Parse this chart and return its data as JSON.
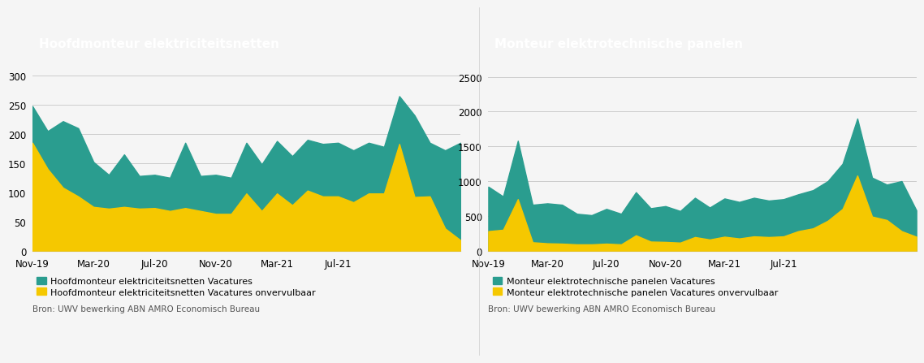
{
  "chart1": {
    "title": "Hoofdmonteur elektriciteitsnetten",
    "title_bg": "#2a9d8f",
    "legend1": "Hoofdmonteur elektriciteitsnetten Vacatures",
    "legend2": "Hoofdmonteur elektriciteitsnetten Vacatures onvervulbaar",
    "color_area": "#2a9d8f",
    "color_fill": "#f5c800",
    "ylim": [
      0,
      310
    ],
    "yticks": [
      0,
      50,
      100,
      150,
      200,
      250,
      300
    ],
    "vacatures": [
      248,
      205,
      222,
      210,
      152,
      130,
      165,
      128,
      130,
      125,
      185,
      128,
      130,
      125,
      185,
      148,
      188,
      162,
      190,
      183,
      185,
      172,
      185,
      178,
      265,
      232,
      185,
      172,
      185
    ],
    "onvervulbaar": [
      185,
      140,
      108,
      93,
      75,
      72,
      75,
      72,
      73,
      68,
      73,
      68,
      63,
      63,
      98,
      68,
      98,
      78,
      103,
      93,
      93,
      83,
      98,
      98,
      183,
      92,
      93,
      38,
      18
    ]
  },
  "chart2": {
    "title": "Monteur elektrotechnische panelen",
    "title_bg": "#2a9d8f",
    "legend1": "Monteur elektrotechnische panelen Vacatures",
    "legend2": "Monteur elektrotechnische panelen Vacatures onvervulbaar",
    "color_area": "#2a9d8f",
    "color_fill": "#f5c800",
    "ylim": [
      0,
      2600
    ],
    "yticks": [
      0,
      500,
      1000,
      1500,
      2000,
      2500
    ],
    "vacatures": [
      920,
      780,
      1580,
      660,
      680,
      660,
      530,
      510,
      600,
      530,
      840,
      610,
      640,
      570,
      760,
      620,
      750,
      700,
      760,
      720,
      740,
      810,
      870,
      1000,
      1250,
      1900,
      1050,
      950,
      1000,
      580
    ],
    "onvervulbaar": [
      280,
      300,
      740,
      120,
      105,
      100,
      90,
      90,
      100,
      90,
      220,
      130,
      125,
      115,
      195,
      160,
      200,
      175,
      205,
      195,
      205,
      280,
      320,
      430,
      600,
      1080,
      490,
      440,
      280,
      200
    ]
  },
  "x_labels": [
    "Nov-19",
    "Mar-20",
    "Jul-20",
    "Nov-20",
    "Mar-21",
    "Jul-21"
  ],
  "x_tick_positions_c1": [
    0,
    4,
    8,
    12,
    16,
    20
  ],
  "x_tick_positions_c2": [
    0,
    4,
    8,
    12,
    16,
    20
  ],
  "source": "Bron: UWV bewerking ABN AMRO Economisch Bureau",
  "background_color": "#f5f5f5",
  "plot_bg": "#f5f5f5",
  "grid_color": "#cccccc",
  "title_text_color": "#ffffff",
  "title_fontsize": 11,
  "axis_fontsize": 8.5,
  "legend_fontsize": 8,
  "source_fontsize": 7.5,
  "spine_color": "#aaaaaa"
}
